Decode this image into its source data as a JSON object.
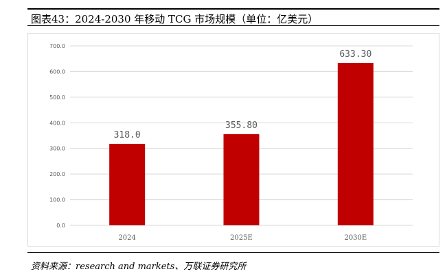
{
  "header": {
    "title": "图表43：2024-2030 年移动 TCG 市场规模（单位：亿美元）"
  },
  "source": {
    "text": "资料来源：research and markets、万联证券研究所"
  },
  "chart_data": {
    "type": "bar",
    "categories": [
      "2024",
      "2025E",
      "2030E"
    ],
    "values": [
      318.0,
      355.8,
      633.3
    ],
    "value_labels": [
      "318.0",
      "355.80",
      "633.30"
    ],
    "y_ticks": [
      "0.0",
      "100.0",
      "200.0",
      "300.0",
      "400.0",
      "500.0",
      "600.0",
      "700.0"
    ],
    "ylim": [
      0,
      700
    ],
    "grid": true,
    "bar_color": "#c00000",
    "grid_color": "#d9d9d9",
    "label_color": "#595959"
  }
}
